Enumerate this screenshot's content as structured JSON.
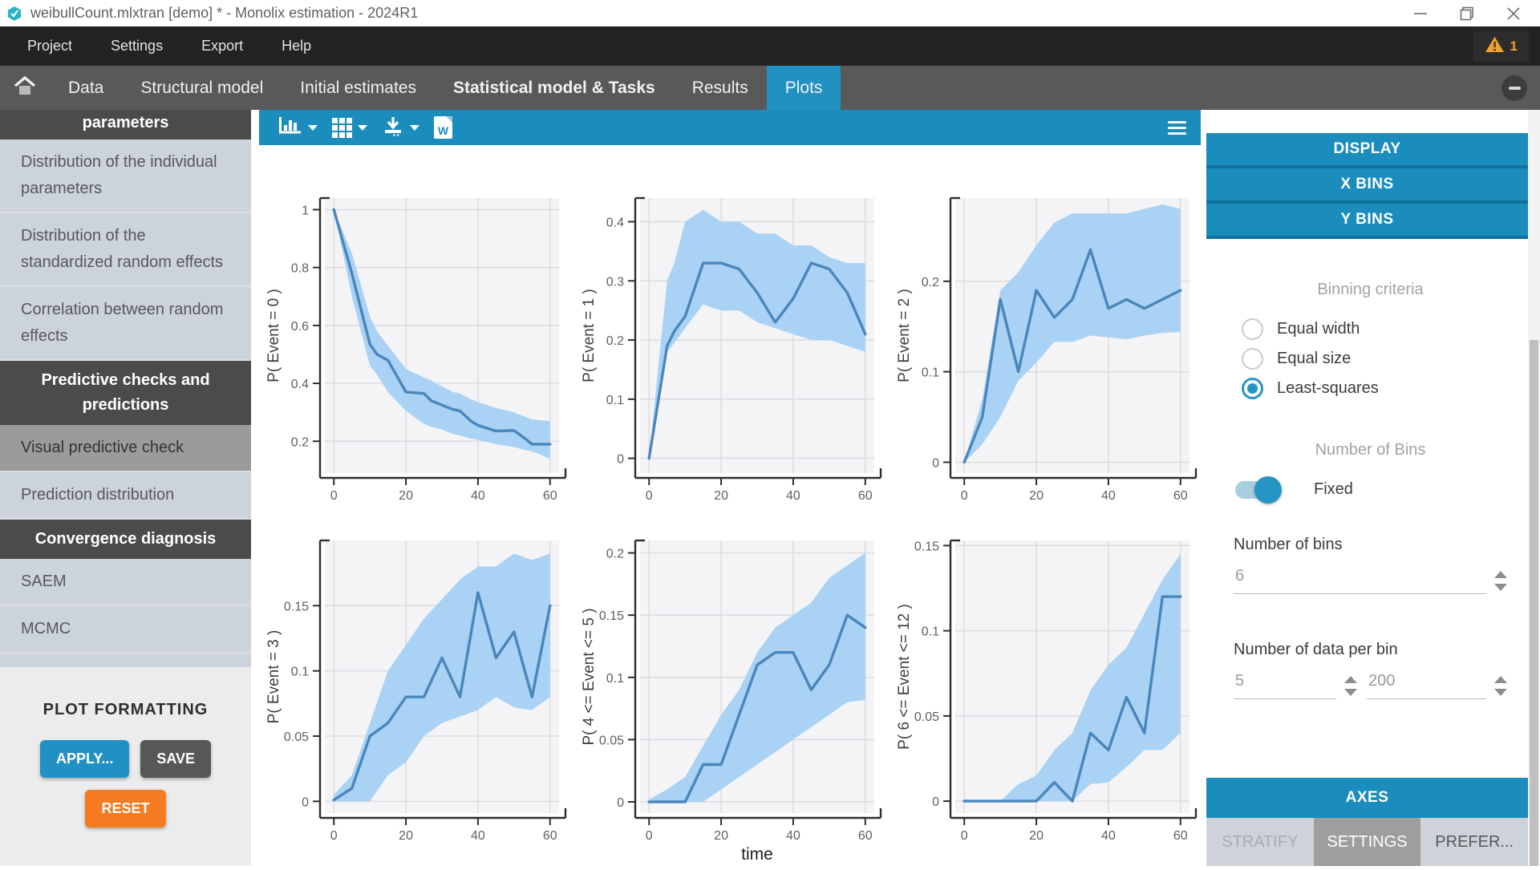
{
  "window": {
    "title": "weibullCount.mlxtran [demo] * - Monolix estimation - 2024R1"
  },
  "menu": {
    "items": [
      "Project",
      "Settings",
      "Export",
      "Help"
    ],
    "warning_count": "1"
  },
  "tabs": {
    "items": [
      "Data",
      "Structural model",
      "Initial estimates",
      "Statistical model & Tasks",
      "Results",
      "Plots"
    ],
    "active": "Plots"
  },
  "sidebar": {
    "items": [
      {
        "label": "parameters",
        "type": "header-partial"
      },
      {
        "label": "Distribution of the individual parameters",
        "type": "item"
      },
      {
        "label": "Distribution of the standardized random effects",
        "type": "item"
      },
      {
        "label": "Correlation between random effects",
        "type": "item"
      },
      {
        "label": "Predictive checks and predictions",
        "type": "header"
      },
      {
        "label": "Visual predictive check",
        "type": "item",
        "selected": true
      },
      {
        "label": "Prediction distribution",
        "type": "item"
      },
      {
        "label": "Convergence diagnosis",
        "type": "header"
      },
      {
        "label": "SAEM",
        "type": "item"
      },
      {
        "label": "MCMC",
        "type": "item"
      }
    ],
    "plot_formatting": {
      "title": "PLOT FORMATTING",
      "apply": "APPLY...",
      "save": "SAVE",
      "reset": "RESET"
    }
  },
  "toolbar": {
    "icons": [
      "chart-type",
      "layout-grid",
      "export-image",
      "export-word",
      "menu"
    ],
    "word_icon_label": "W"
  },
  "right_panel": {
    "section_buttons": [
      "DISPLAY",
      "X BINS",
      "Y BINS"
    ],
    "binning": {
      "title": "Binning criteria",
      "options": [
        {
          "label": "Equal width",
          "selected": false
        },
        {
          "label": "Equal size",
          "selected": false
        },
        {
          "label": "Least-squares",
          "selected": true
        }
      ]
    },
    "bins": {
      "title": "Number of Bins",
      "toggle_label": "Fixed",
      "toggle_on": true,
      "number_label": "Number of bins",
      "number_value": "6",
      "data_per_bin_label": "Number of data per bin",
      "data_per_bin_min": "5",
      "data_per_bin_max": "200"
    },
    "axes_button": "AXES",
    "bottom_tabs": [
      {
        "label": "STRATIFY",
        "active": false
      },
      {
        "label": "SETTINGS",
        "active": true
      },
      {
        "label": "PREFER...",
        "active": false
      }
    ]
  },
  "colors": {
    "accent_blue": "#2191c1",
    "toolbar_blue": "#1b8dbd",
    "band_blue": "#a9d2f5",
    "line_blue": "#4a86bb",
    "warning_orange": "#f0a22e",
    "reset_orange": "#f47b20",
    "sidebar_bg": "#cdd3da",
    "header_dark": "#4b4b4b",
    "selected_gray": "#9b9b9b"
  },
  "chart_data": [
    {
      "type": "line",
      "ylabel": "P( Event = 0 )",
      "x": [
        0,
        5,
        10,
        12,
        15,
        20,
        25,
        27,
        30,
        33,
        35,
        38,
        40,
        45,
        50,
        53,
        55,
        60
      ],
      "median": [
        1,
        0.78,
        0.535,
        0.5,
        0.48,
        0.37,
        0.365,
        0.34,
        0.325,
        0.31,
        0.305,
        0.27,
        0.255,
        0.235,
        0.237,
        0.21,
        0.19,
        0.19
      ],
      "lower": [
        1,
        0.7,
        0.46,
        0.43,
        0.37,
        0.305,
        0.26,
        0.25,
        0.24,
        0.225,
        0.22,
        0.21,
        0.205,
        0.19,
        0.18,
        0.17,
        0.165,
        0.14
      ],
      "upper": [
        1,
        0.85,
        0.63,
        0.58,
        0.53,
        0.45,
        0.42,
        0.41,
        0.39,
        0.37,
        0.365,
        0.345,
        0.335,
        0.315,
        0.3,
        0.285,
        0.275,
        0.27
      ],
      "ylim": [
        0.09,
        1.04
      ],
      "yticks": [
        0.2,
        0.4,
        0.6,
        0.8,
        1
      ],
      "ytick_labels": [
        "0.2",
        "0.4",
        "0.6",
        "0.8",
        "1"
      ],
      "xlim": [
        -2.5,
        62.5
      ],
      "xticks": [
        0,
        20,
        40,
        60
      ],
      "xtick_labels": [
        "0",
        "20",
        "40",
        "60"
      ]
    },
    {
      "type": "line",
      "ylabel": "P( Event = 1 )",
      "x": [
        0,
        5,
        7,
        10,
        15,
        20,
        25,
        30,
        35,
        40,
        45,
        50,
        55,
        60
      ],
      "median": [
        0,
        0.19,
        0.215,
        0.24,
        0.33,
        0.33,
        0.32,
        0.28,
        0.23,
        0.27,
        0.33,
        0.32,
        0.28,
        0.21
      ],
      "lower": [
        0,
        0.18,
        0.195,
        0.22,
        0.26,
        0.25,
        0.25,
        0.23,
        0.22,
        0.21,
        0.2,
        0.2,
        0.19,
        0.18
      ],
      "upper": [
        0,
        0.3,
        0.33,
        0.4,
        0.42,
        0.4,
        0.4,
        0.38,
        0.38,
        0.36,
        0.36,
        0.34,
        0.33,
        0.33
      ],
      "ylim": [
        -0.025,
        0.44
      ],
      "yticks": [
        0,
        0.1,
        0.2,
        0.3,
        0.4
      ],
      "ytick_labels": [
        "0",
        "0.1",
        "0.2",
        "0.3",
        "0.4"
      ],
      "xlim": [
        -2.5,
        62.5
      ],
      "xticks": [
        0,
        20,
        40,
        60
      ],
      "xtick_labels": [
        "0",
        "20",
        "40",
        "60"
      ]
    },
    {
      "type": "line",
      "ylabel": "P( Event = 2 )",
      "x": [
        0,
        5,
        10,
        15,
        20,
        25,
        30,
        35,
        40,
        45,
        50,
        55,
        60
      ],
      "median": [
        0,
        0.05,
        0.18,
        0.1,
        0.19,
        0.16,
        0.18,
        0.235,
        0.17,
        0.18,
        0.17,
        0.18,
        0.19
      ],
      "lower": [
        0,
        0.02,
        0.05,
        0.09,
        0.11,
        0.133,
        0.133,
        0.14,
        0.138,
        0.136,
        0.14,
        0.143,
        0.144
      ],
      "upper": [
        0,
        0.07,
        0.19,
        0.21,
        0.24,
        0.265,
        0.275,
        0.275,
        0.275,
        0.275,
        0.28,
        0.285,
        0.28
      ],
      "ylim": [
        -0.012,
        0.292
      ],
      "yticks": [
        0,
        0.1,
        0.2
      ],
      "ytick_labels": [
        "0",
        "0.1",
        "0.2"
      ],
      "xlim": [
        -2.5,
        62.5
      ],
      "xticks": [
        0,
        20,
        40,
        60
      ],
      "xtick_labels": [
        "0",
        "20",
        "40",
        "60"
      ]
    },
    {
      "type": "line",
      "ylabel": "P( Event = 3 )",
      "x": [
        0,
        5,
        10,
        15,
        20,
        25,
        30,
        35,
        40,
        45,
        50,
        55,
        60
      ],
      "median": [
        0.001,
        0.01,
        0.05,
        0.06,
        0.08,
        0.08,
        0.11,
        0.08,
        0.16,
        0.11,
        0.13,
        0.08,
        0.15
      ],
      "lower": [
        0,
        0,
        0,
        0.02,
        0.03,
        0.05,
        0.06,
        0.065,
        0.07,
        0.08,
        0.072,
        0.07,
        0.08
      ],
      "upper": [
        0.005,
        0.02,
        0.06,
        0.1,
        0.12,
        0.14,
        0.155,
        0.17,
        0.18,
        0.18,
        0.19,
        0.185,
        0.19
      ],
      "ylim": [
        -0.009,
        0.2
      ],
      "yticks": [
        0,
        0.05,
        0.1,
        0.15
      ],
      "ytick_labels": [
        "0",
        "0.05",
        "0.1",
        "0.15"
      ],
      "xlim": [
        -2.5,
        62.5
      ],
      "xticks": [
        0,
        20,
        40,
        60
      ],
      "xtick_labels": [
        "0",
        "20",
        "40",
        "60"
      ]
    },
    {
      "type": "line",
      "ylabel": "P( 4 <= Event <= 5 )",
      "xlabel": "time",
      "x": [
        0,
        5,
        10,
        15,
        20,
        25,
        30,
        35,
        40,
        45,
        50,
        55,
        60
      ],
      "median": [
        0,
        0,
        0,
        0.03,
        0.03,
        0.07,
        0.11,
        0.12,
        0.12,
        0.09,
        0.11,
        0.15,
        0.14
      ],
      "lower": [
        0,
        0,
        0,
        0,
        0.01,
        0.02,
        0.03,
        0.04,
        0.05,
        0.06,
        0.07,
        0.08,
        0.082
      ],
      "upper": [
        0.002,
        0.01,
        0.02,
        0.045,
        0.07,
        0.09,
        0.12,
        0.14,
        0.15,
        0.16,
        0.18,
        0.19,
        0.2
      ],
      "ylim": [
        -0.009,
        0.21
      ],
      "yticks": [
        0,
        0.05,
        0.1,
        0.15,
        0.2
      ],
      "ytick_labels": [
        "0",
        "0.05",
        "0.1",
        "0.15",
        "0.2"
      ],
      "xlim": [
        -2.5,
        62.5
      ],
      "xticks": [
        0,
        20,
        40,
        60
      ],
      "xtick_labels": [
        "0",
        "20",
        "40",
        "60"
      ]
    },
    {
      "type": "line",
      "ylabel": "P( 6 <= Event <= 12 )",
      "x": [
        0,
        5,
        10,
        15,
        20,
        25,
        30,
        35,
        40,
        45,
        50,
        55,
        60
      ],
      "median": [
        0,
        0,
        0,
        0,
        0,
        0.011,
        0,
        0.04,
        0.03,
        0.061,
        0.04,
        0.12,
        0.12
      ],
      "lower": [
        0,
        0,
        0,
        0,
        0,
        0,
        0,
        0.01,
        0.011,
        0.02,
        0.03,
        0.03,
        0.04
      ],
      "upper": [
        0,
        0,
        0,
        0.01,
        0.015,
        0.03,
        0.04,
        0.065,
        0.08,
        0.09,
        0.11,
        0.13,
        0.145
      ],
      "ylim": [
        -0.007,
        0.153
      ],
      "yticks": [
        0,
        0.05,
        0.1,
        0.15
      ],
      "ytick_labels": [
        "0",
        "0.05",
        "0.1",
        "0.15"
      ],
      "xlim": [
        -2.5,
        62.5
      ],
      "xticks": [
        0,
        20,
        40,
        60
      ],
      "xtick_labels": [
        "0",
        "20",
        "40",
        "60"
      ]
    }
  ]
}
